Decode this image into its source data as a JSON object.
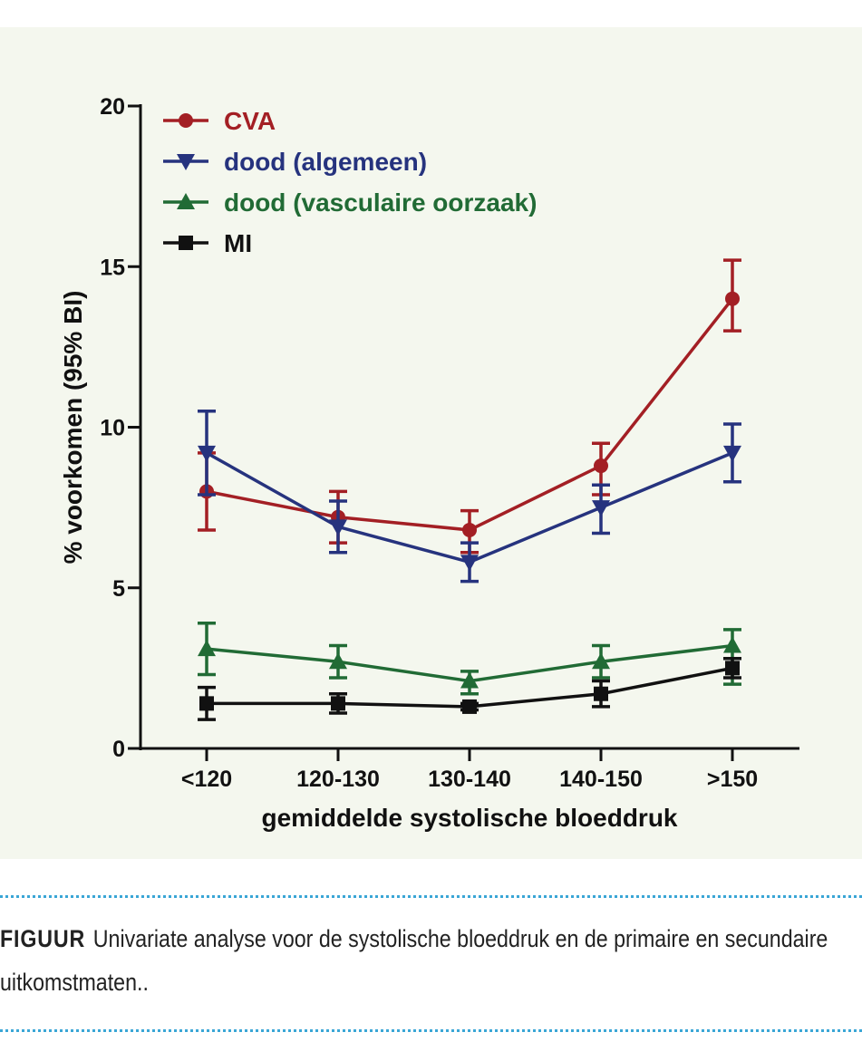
{
  "chart_data": {
    "type": "line",
    "title": "",
    "xlabel": "gemiddelde systolische bloeddruk",
    "ylabel": "% voorkomen (95% BI)",
    "categories": [
      "<120",
      "120-130",
      "130-140",
      "140-150",
      ">150"
    ],
    "ylim": [
      0,
      20
    ],
    "yticks": [
      0,
      5,
      10,
      15,
      20
    ],
    "legend_position": "top-left",
    "series": [
      {
        "name": "CVA",
        "color": "#a31f24",
        "marker": "circle",
        "values": [
          8.0,
          7.2,
          6.8,
          8.8,
          14.0
        ],
        "err_low": [
          6.8,
          6.4,
          6.1,
          7.9,
          13.0
        ],
        "err_high": [
          9.2,
          8.0,
          7.4,
          9.5,
          15.2
        ]
      },
      {
        "name": "dood (algemeen)",
        "color": "#26337e",
        "marker": "triangle-down",
        "values": [
          9.2,
          6.9,
          5.8,
          7.5,
          9.2
        ],
        "err_low": [
          7.9,
          6.1,
          5.2,
          6.7,
          8.3
        ],
        "err_high": [
          10.5,
          7.7,
          6.4,
          8.2,
          10.1
        ]
      },
      {
        "name": "dood (vasculaire oorzaak)",
        "color": "#216b35",
        "marker": "triangle-up",
        "values": [
          3.1,
          2.7,
          2.1,
          2.7,
          3.2
        ],
        "err_low": [
          2.3,
          2.2,
          1.7,
          2.2,
          2.0
        ],
        "err_high": [
          3.9,
          3.2,
          2.4,
          3.2,
          3.7
        ]
      },
      {
        "name": "MI",
        "color": "#111111",
        "marker": "square",
        "values": [
          1.4,
          1.4,
          1.3,
          1.7,
          2.5
        ],
        "err_low": [
          0.9,
          1.1,
          1.2,
          1.3,
          2.2
        ],
        "err_high": [
          1.9,
          1.7,
          1.4,
          2.1,
          2.8
        ]
      }
    ]
  },
  "caption": {
    "lead": "FIGUUR",
    "text": "Univariate analyse voor de systolische bloeddruk en de primaire en secundaire uitkomstmaten.."
  }
}
